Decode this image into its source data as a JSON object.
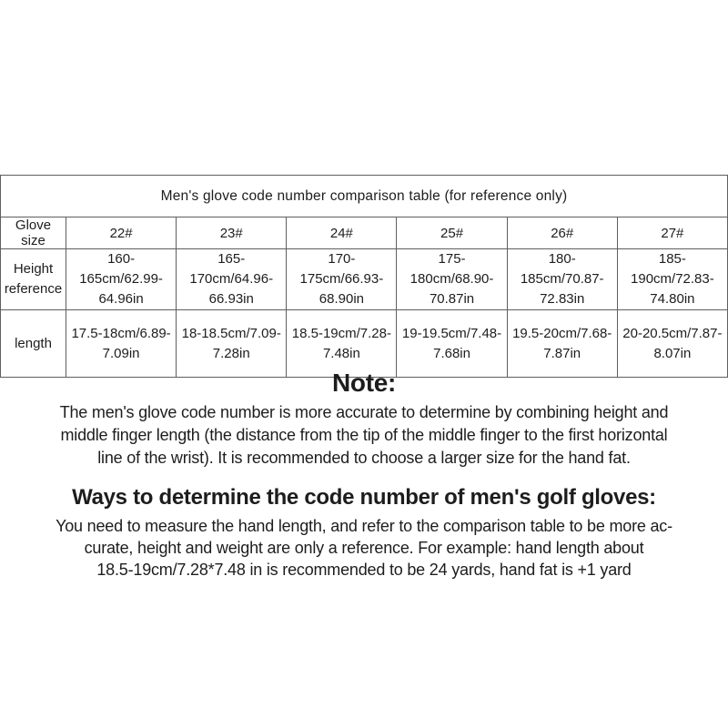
{
  "colors": {
    "text": "#1d1d1d",
    "border": "#5f5f5f",
    "background": "#ffffff"
  },
  "table": {
    "title": "Men's glove code number comparison table (for reference only)",
    "row_headers": [
      "Glove size",
      "Height reference",
      "length"
    ],
    "columns": [
      "22#",
      "23#",
      "24#",
      "25#",
      "26#",
      "27#"
    ],
    "height_reference": [
      [
        "160-",
        "165cm/62.99-",
        "64.96in"
      ],
      [
        "165-",
        "170cm/64.96-",
        "66.93in"
      ],
      [
        "170-",
        "175cm/66.93-",
        "68.90in"
      ],
      [
        "175-",
        "180cm/68.90-",
        "70.87in"
      ],
      [
        "180-",
        "185cm/70.87-",
        "72.83in"
      ],
      [
        "185-",
        "190cm/72.83-",
        "74.80in"
      ]
    ],
    "length": [
      [
        "17.5-18cm/6.89-",
        "7.09in"
      ],
      [
        "18-18.5cm/7.09-",
        "7.28in"
      ],
      [
        "18.5-19cm/7.28-",
        "7.48in"
      ],
      [
        "19-19.5cm/7.48-",
        "7.68in"
      ],
      [
        "19.5-20cm/7.68-",
        "7.87in"
      ],
      [
        "20-20.5cm/7.87-",
        "8.07in"
      ]
    ]
  },
  "note": {
    "heading": "Note:",
    "lines": [
      "The men's glove code number is more accurate to determine by combining height and",
      "middle finger length (the distance from the tip of the middle finger to the first horizontal",
      "line of the wrist). It is recommended to choose a larger size for the hand fat."
    ]
  },
  "ways": {
    "heading": "Ways to determine the code number of men's golf gloves:",
    "lines": [
      "You need to measure the hand length, and refer to the comparison table to be more ac-",
      "curate, height and weight are only a reference. For example: hand length about",
      "18.5-19cm/7.28*7.48 in is recommended to be 24 yards, hand fat is +1 yard"
    ]
  }
}
